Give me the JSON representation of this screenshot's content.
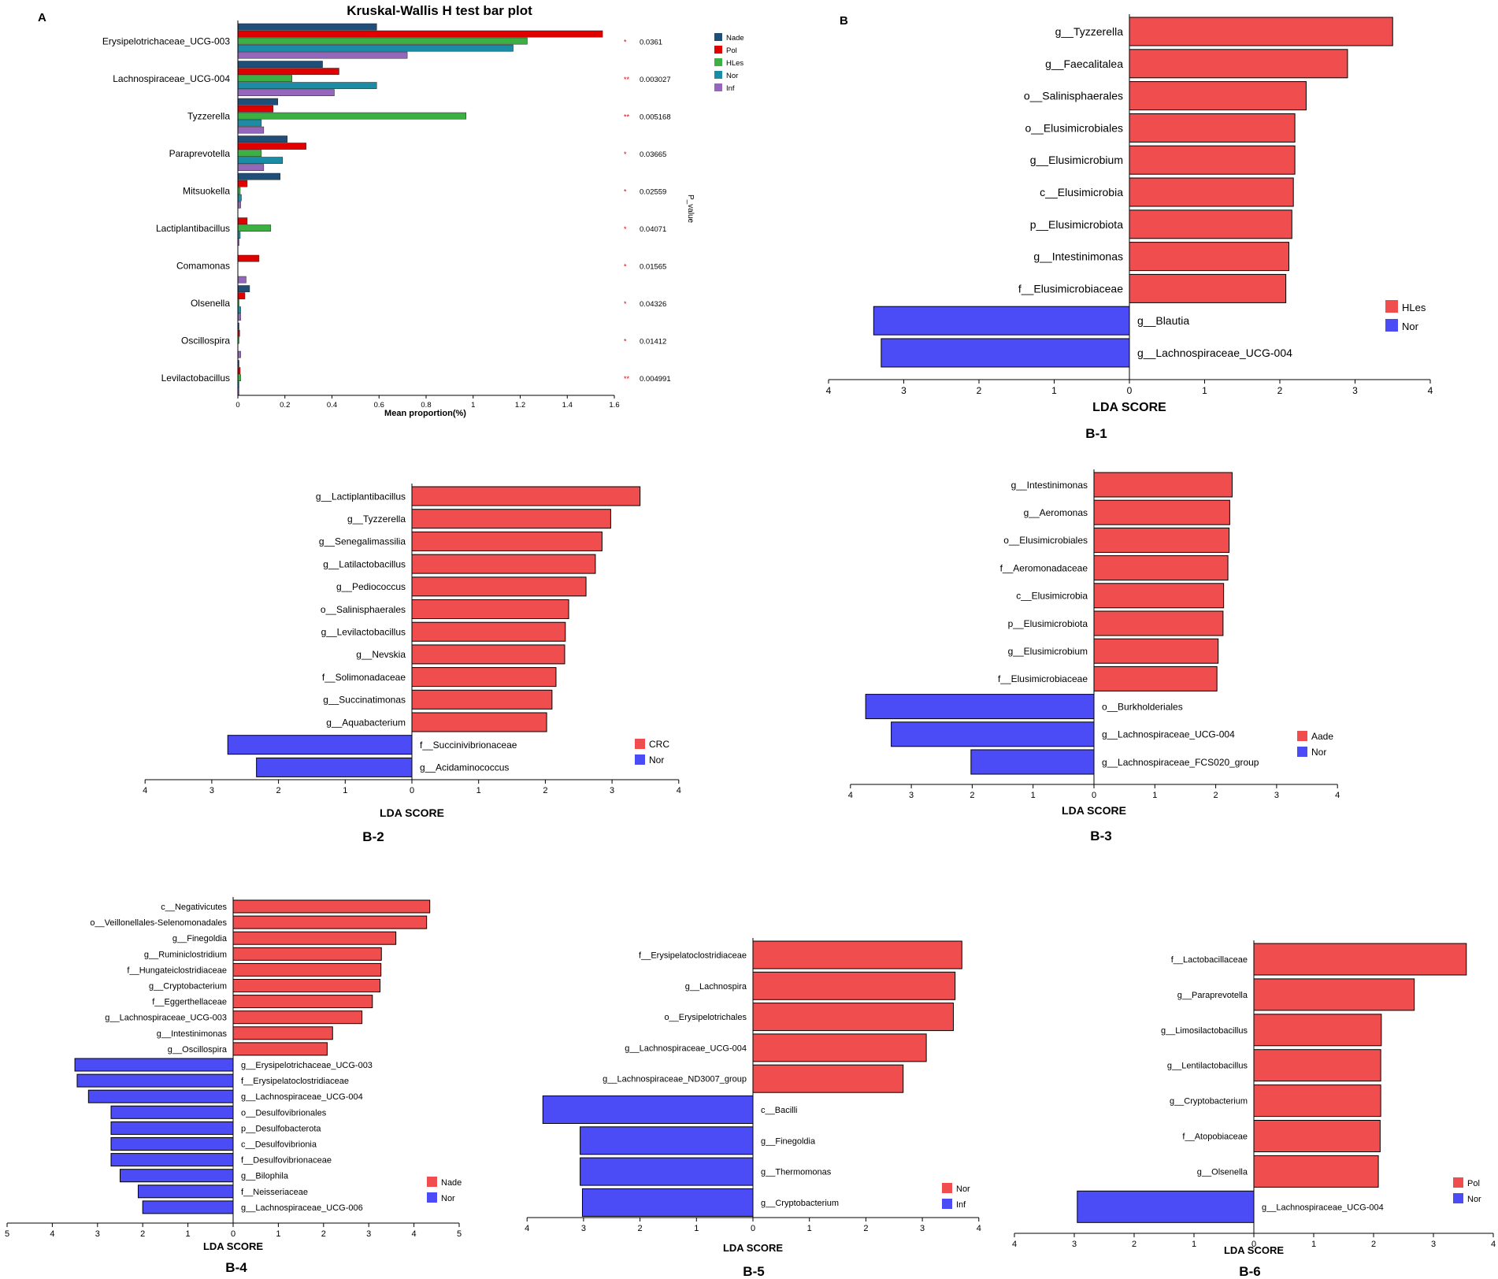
{
  "colors": {
    "nade": "#1f4e79",
    "pol": "#e00000",
    "hles_kw": "#3cb043",
    "nor_kw": "#1a8ca5",
    "inf_kw": "#9467bd",
    "red": "#f04e4e",
    "blue": "#4b4cf5"
  },
  "chart_data": [
    {
      "id": "A",
      "type": "bar",
      "orientation": "horizontal",
      "panel_label": "A",
      "title": "Kruskal-Wallis H test bar plot",
      "xlabel": "Mean proportion(%)",
      "p_label": "P_value",
      "xlim": [
        0,
        1.6
      ],
      "xticks": [
        "0",
        "0.2",
        "0.4",
        "0.6",
        "0.8",
        "1",
        "1.2",
        "1.4",
        "1.6"
      ],
      "categories": [
        "Erysipelotrichaceae_UCG-003",
        "Lachnospiraceae_UCG-004",
        "Tyzzerella",
        "Paraprevotella",
        "Mitsuokella",
        "Lactiplantibacillus",
        "Comamonas",
        "Olsenella",
        "Oscillospira",
        "Levilactobacillus"
      ],
      "stars": [
        "*",
        "**",
        "**",
        "*",
        "*",
        "*",
        "*",
        "*",
        "*",
        "**"
      ],
      "pvalues": [
        "0.0361",
        "0.003027",
        "0.005168",
        "0.03665",
        "0.02559",
        "0.04071",
        "0.01565",
        "0.04326",
        "0.01412",
        "0.004991"
      ],
      "series": [
        {
          "name": "Nade",
          "color": "#1f4e79",
          "values": [
            0.59,
            0.36,
            0.17,
            0.21,
            0.18,
            0.0,
            0.0,
            0.05,
            0.005,
            0.005
          ]
        },
        {
          "name": "Pol",
          "color": "#e00000",
          "values": [
            1.55,
            0.43,
            0.15,
            0.29,
            0.04,
            0.04,
            0.09,
            0.03,
            0.008,
            0.01
          ]
        },
        {
          "name": "HLes",
          "color": "#3cb043",
          "values": [
            1.23,
            0.23,
            0.97,
            0.1,
            0.01,
            0.14,
            0.0,
            0.005,
            0.005,
            0.012
          ]
        },
        {
          "name": "Nor",
          "color": "#1a8ca5",
          "values": [
            1.17,
            0.59,
            0.1,
            0.19,
            0.015,
            0.01,
            0.0,
            0.012,
            0.0,
            0.005
          ]
        },
        {
          "name": "Inf",
          "color": "#9467bd",
          "values": [
            0.72,
            0.41,
            0.11,
            0.11,
            0.012,
            0.005,
            0.035,
            0.012,
            0.012,
            0.005
          ]
        }
      ]
    },
    {
      "id": "B1",
      "type": "bar",
      "orientation": "horizontal",
      "panel_label": "B",
      "caption": "B-1",
      "xlabel": "LDA SCORE",
      "xlim": [
        -4,
        4
      ],
      "xticks": [
        "4",
        "3",
        "2",
        "1",
        "0",
        "1",
        "2",
        "3",
        "4"
      ],
      "legend": [
        {
          "name": "HLes",
          "color": "#f04e4e"
        },
        {
          "name": "Nor",
          "color": "#4b4cf5"
        }
      ],
      "categories": [
        "g__Tyzzerella",
        "g__Faecalitalea",
        "o__Salinisphaerales",
        "o__Elusimicrobiales",
        "g__Elusimicrobium",
        "c__Elusimicrobia",
        "p__Elusimicrobiota",
        "g__Intestinimonas",
        "f__Elusimicrobiaceae",
        "g__Blautia",
        "g__Lachnospiraceae_UCG-004"
      ],
      "values": [
        3.5,
        2.9,
        2.35,
        2.2,
        2.2,
        2.18,
        2.16,
        2.12,
        2.08,
        -3.4,
        -3.3
      ]
    },
    {
      "id": "B2",
      "type": "bar",
      "orientation": "horizontal",
      "caption": "B-2",
      "xlabel": "LDA SCORE",
      "xlim": [
        -4,
        4
      ],
      "xticks": [
        "4",
        "3",
        "2",
        "1",
        "0",
        "1",
        "2",
        "3",
        "4"
      ],
      "legend": [
        {
          "name": "CRC",
          "color": "#f04e4e"
        },
        {
          "name": "Nor",
          "color": "#4b4cf5"
        }
      ],
      "categories": [
        "g__Lactiplantibacillus",
        "g__Tyzzerella",
        "g__Senegalimassilia",
        "g__Latilactobacillus",
        "g__Pediococcus",
        "o__Salinisphaerales",
        "g__Levilactobacillus",
        "g__Nevskia",
        "f__Solimonadaceae",
        "g__Succinatimonas",
        "g__Aquabacterium",
        "f__Succinivibrionaceae",
        "g__Acidaminococcus"
      ],
      "values": [
        3.42,
        2.98,
        2.85,
        2.75,
        2.61,
        2.35,
        2.3,
        2.29,
        2.16,
        2.1,
        2.02,
        -2.76,
        -2.33
      ]
    },
    {
      "id": "B3",
      "type": "bar",
      "orientation": "horizontal",
      "caption": "B-3",
      "xlabel": "LDA SCORE",
      "xlim": [
        -4,
        4
      ],
      "xticks": [
        "4",
        "3",
        "2",
        "1",
        "0",
        "1",
        "2",
        "3",
        "4"
      ],
      "legend": [
        {
          "name": "Aade",
          "color": "#f04e4e"
        },
        {
          "name": "Nor",
          "color": "#4b4cf5"
        }
      ],
      "categories": [
        "g__Intestinimonas",
        "g__Aeromonas",
        "o__Elusimicrobiales",
        "f__Aeromonadaceae",
        "c__Elusimicrobia",
        "p__Elusimicrobiota",
        "g__Elusimicrobium",
        "f__Elusimicrobiaceae",
        "o__Burkholderiales",
        "g__Lachnospiraceae_UCG-004",
        "g__Lachnospiraceae_FCS020_group"
      ],
      "values": [
        2.27,
        2.23,
        2.22,
        2.2,
        2.13,
        2.12,
        2.04,
        2.02,
        -3.75,
        -3.33,
        -2.02
      ]
    },
    {
      "id": "B4",
      "type": "bar",
      "orientation": "horizontal",
      "caption": "B-4",
      "xlabel": "LDA SCORE",
      "xlim": [
        -5,
        5
      ],
      "xticks": [
        "5",
        "4",
        "3",
        "2",
        "1",
        "0",
        "1",
        "2",
        "3",
        "4",
        "5"
      ],
      "legend": [
        {
          "name": "Nade",
          "color": "#f04e4e"
        },
        {
          "name": "Nor",
          "color": "#4b4cf5"
        }
      ],
      "categories": [
        "c__Negativicutes",
        "o__Veillonellales-Selenomonadales",
        "g__Finegoldia",
        "g__Ruminiclostridium",
        "f__Hungateiclostridiaceae",
        "g__Cryptobacterium",
        "f__Eggerthellaceae",
        "g__Lachnospiraceae_UCG-003",
        "g__Intestinimonas",
        "g__Oscillospira",
        "g__Erysipelotrichaceae_UCG-003",
        "f__Erysipelatoclostridiaceae",
        "g__Lachnospiraceae_UCG-004",
        "o__Desulfovibrionales",
        "p__Desulfobacterota",
        "c__Desulfovibrionia",
        "f__Desulfovibrionaceae",
        "g__Bilophila",
        "f__Neisseriaceae",
        "g__Lachnospiraceae_UCG-006"
      ],
      "values": [
        4.35,
        4.28,
        3.6,
        3.28,
        3.27,
        3.25,
        3.08,
        2.85,
        2.2,
        2.08,
        -3.5,
        -3.45,
        -3.2,
        -2.7,
        -2.7,
        -2.7,
        -2.7,
        -2.5,
        -2.1,
        -2.0
      ]
    },
    {
      "id": "B5",
      "type": "bar",
      "orientation": "horizontal",
      "caption": "B-5",
      "xlabel": "LDA SCORE",
      "xlim": [
        -4,
        4
      ],
      "xticks": [
        "4",
        "3",
        "2",
        "1",
        "0",
        "1",
        "2",
        "3",
        "4"
      ],
      "legend": [
        {
          "name": "Nor",
          "color": "#f04e4e"
        },
        {
          "name": "Inf",
          "color": "#4b4cf5"
        }
      ],
      "categories": [
        "f__Erysipelatoclostridiaceae",
        "g__Lachnospira",
        "o__Erysipelotrichales",
        "g__Lachnospiraceae_UCG-004",
        "g__Lachnospiraceae_ND3007_group",
        "c__Bacilli",
        "g__Finegoldia",
        "g__Thermomonas",
        "g__Cryptobacterium"
      ],
      "values": [
        3.7,
        3.58,
        3.55,
        3.07,
        2.66,
        -3.72,
        -3.06,
        -3.06,
        -3.02
      ]
    },
    {
      "id": "B6",
      "type": "bar",
      "orientation": "horizontal",
      "caption": "B-6",
      "xlabel": "LDA SCORE",
      "xlim": [
        -4,
        4
      ],
      "xticks": [
        "4",
        "3",
        "2",
        "1",
        "0",
        "1",
        "2",
        "3",
        "4"
      ],
      "legend": [
        {
          "name": "Pol",
          "color": "#f04e4e"
        },
        {
          "name": "Nor",
          "color": "#4b4cf5"
        }
      ],
      "categories": [
        "f__Lactobacillaceae",
        "g__Paraprevotella",
        "g__Limosilactobacillus",
        "g__Lentilactobacillus",
        "g__Cryptobacterium",
        "f__Atopobiaceae",
        "g__Olsenella",
        "g__Lachnospiraceae_UCG-004"
      ],
      "values": [
        3.55,
        2.68,
        2.13,
        2.12,
        2.12,
        2.11,
        2.08,
        -2.95
      ]
    }
  ]
}
